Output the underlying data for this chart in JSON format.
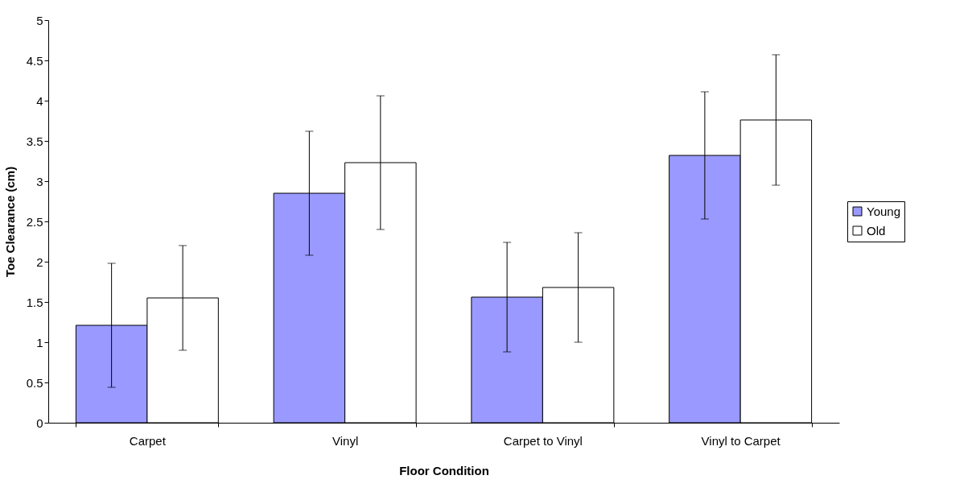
{
  "chart_data": {
    "type": "bar",
    "xlabel": "Floor Condition",
    "ylabel": "Toe Clearance (cm)",
    "categories": [
      "Carpet",
      "Vinyl",
      "Carpet to Vinyl",
      "Vinyl to Carpet"
    ],
    "series": [
      {
        "name": "Young",
        "color": "#9999ff",
        "values": [
          1.21,
          2.85,
          1.56,
          3.32
        ],
        "errors": [
          0.77,
          0.77,
          0.68,
          0.79
        ]
      },
      {
        "name": "Old",
        "color": "#ffffff",
        "values": [
          1.55,
          3.23,
          1.68,
          3.76
        ],
        "errors": [
          0.65,
          0.83,
          0.68,
          0.81
        ]
      }
    ],
    "ylim": [
      0,
      5
    ],
    "yticks": [
      0,
      0.5,
      1,
      1.5,
      2,
      2.5,
      3,
      3.5,
      4,
      4.5,
      5
    ],
    "grid": false,
    "legend": "right"
  }
}
